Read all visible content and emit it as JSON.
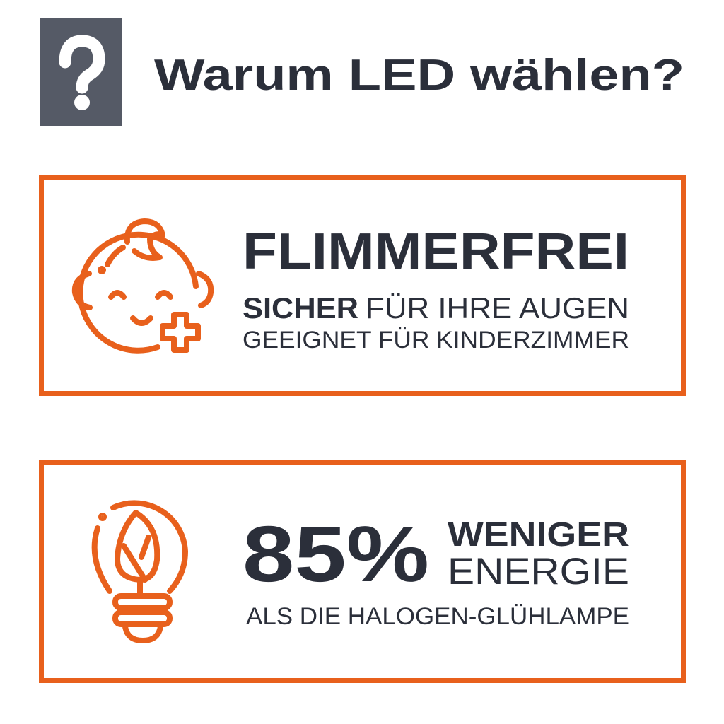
{
  "header": {
    "icon": "question-mark-icon",
    "title": "Warum LED wählen?"
  },
  "cards": [
    {
      "icon": "baby-face-plus-icon",
      "headline": "FLIMMERFREI",
      "line1_bold": "SICHER",
      "line1_rest": "FÜR IHRE AUGEN",
      "line2": "GEEIGNET FÜR KINDERZIMMER"
    },
    {
      "icon": "leaf-lightbulb-icon",
      "big_value": "85%",
      "value_label_bold": "WENIGER",
      "value_label": "ENERGIE",
      "line2": "ALS DIE HALOGEN-GLÜHLAMPE"
    }
  ],
  "colors": {
    "accent": "#e8601c",
    "text": "#2b2f3a",
    "question_box": "#555a66"
  }
}
